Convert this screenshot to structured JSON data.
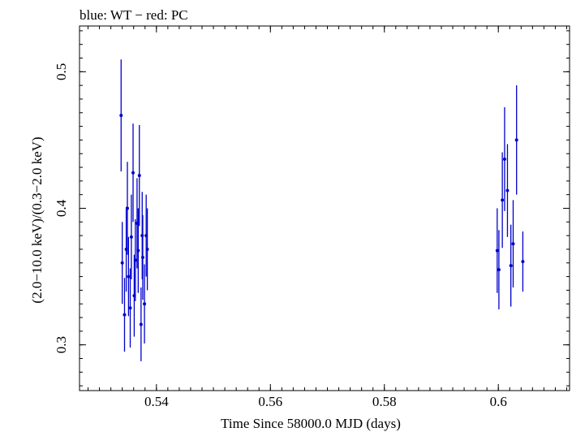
{
  "chart_data": {
    "type": "scatter",
    "title": "blue: WT − red: PC",
    "xlabel": "Time Since 58000.0 MJD (days)",
    "ylabel": "(2.0−10.0 keV)/(0.3−2.0 keV)",
    "xlim": [
      0.5265,
      0.6125
    ],
    "ylim": [
      0.2665,
      0.5335
    ],
    "x_ticks": [
      0.54,
      0.56,
      0.58,
      0.6
    ],
    "x_tick_labels": [
      "0.54",
      "0.56",
      "0.58",
      "0.6"
    ],
    "y_ticks": [
      0.3,
      0.4,
      0.5
    ],
    "y_tick_labels": [
      "0.3",
      "0.4",
      "0.5"
    ],
    "grid": false,
    "series": [
      {
        "color": "#0000cc",
        "points": [
          {
            "x": 0.5338,
            "y": 0.468,
            "err": 0.041
          },
          {
            "x": 0.534,
            "y": 0.36,
            "err": 0.03
          },
          {
            "x": 0.5344,
            "y": 0.322,
            "err": 0.027
          },
          {
            "x": 0.5347,
            "y": 0.37,
            "err": 0.031
          },
          {
            "x": 0.5349,
            "y": 0.4,
            "err": 0.034
          },
          {
            "x": 0.5351,
            "y": 0.35,
            "err": 0.029
          },
          {
            "x": 0.5354,
            "y": 0.327,
            "err": 0.029
          },
          {
            "x": 0.5356,
            "y": 0.379,
            "err": 0.031
          },
          {
            "x": 0.5359,
            "y": 0.426,
            "err": 0.036
          },
          {
            "x": 0.5361,
            "y": 0.336,
            "err": 0.03
          },
          {
            "x": 0.5363,
            "y": 0.362,
            "err": 0.03
          },
          {
            "x": 0.5366,
            "y": 0.389,
            "err": 0.033
          },
          {
            "x": 0.5368,
            "y": 0.369,
            "err": 0.031
          },
          {
            "x": 0.537,
            "y": 0.424,
            "err": 0.037
          },
          {
            "x": 0.5373,
            "y": 0.315,
            "err": 0.027
          },
          {
            "x": 0.5375,
            "y": 0.38,
            "err": 0.032
          },
          {
            "x": 0.5376,
            "y": 0.364,
            "err": 0.031
          },
          {
            "x": 0.5379,
            "y": 0.33,
            "err": 0.029
          },
          {
            "x": 0.5382,
            "y": 0.38,
            "err": 0.03
          },
          {
            "x": 0.5384,
            "y": 0.37,
            "err": 0.03
          },
          {
            "x": 0.5998,
            "y": 0.369,
            "err": 0.031
          },
          {
            "x": 0.6001,
            "y": 0.355,
            "err": 0.029
          },
          {
            "x": 0.6007,
            "y": 0.406,
            "err": 0.035
          },
          {
            "x": 0.6011,
            "y": 0.436,
            "err": 0.038
          },
          {
            "x": 0.6016,
            "y": 0.413,
            "err": 0.034
          },
          {
            "x": 0.6022,
            "y": 0.358,
            "err": 0.03
          },
          {
            "x": 0.6026,
            "y": 0.374,
            "err": 0.032
          },
          {
            "x": 0.6032,
            "y": 0.45,
            "err": 0.04
          },
          {
            "x": 0.6043,
            "y": 0.361,
            "err": 0.022
          }
        ]
      }
    ]
  }
}
